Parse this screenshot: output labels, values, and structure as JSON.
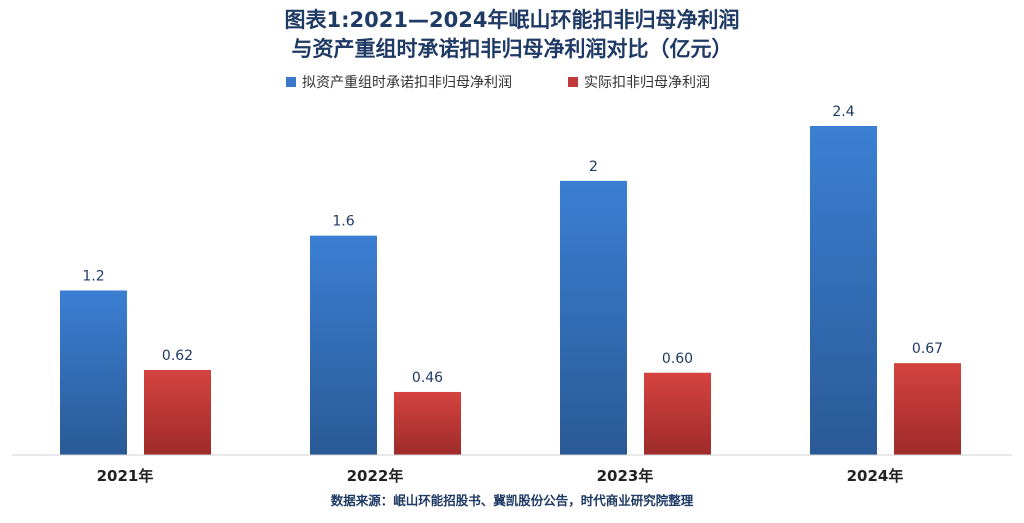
{
  "chart_data": {
    "type": "bar",
    "title_line1": "图表1:2021—2024年岷山环能扣非归母净利润",
    "title_line2": "与资产重组时承诺扣非归母净利润对比（亿元）",
    "categories": [
      "2021年",
      "2022年",
      "2023年",
      "2024年"
    ],
    "series": [
      {
        "name": "拟资产重组时承诺扣非归母净利润",
        "values": [
          1.2,
          1.6,
          2,
          2.4
        ],
        "labels": [
          "1.2",
          "1.6",
          "2",
          "2.4"
        ],
        "color": "#3a78c9"
      },
      {
        "name": "实际扣非归母净利润",
        "values": [
          0.62,
          0.46,
          0.6,
          0.67
        ],
        "labels": [
          "0.62",
          "0.46",
          "0.60",
          "0.67"
        ],
        "color": "#c0393b"
      }
    ],
    "ylim": [
      0,
      2.4
    ],
    "grid": false,
    "legend": "top-center",
    "source": "数据来源：岷山环能招股书、冀凯股份公告，时代商业研究院整理"
  }
}
